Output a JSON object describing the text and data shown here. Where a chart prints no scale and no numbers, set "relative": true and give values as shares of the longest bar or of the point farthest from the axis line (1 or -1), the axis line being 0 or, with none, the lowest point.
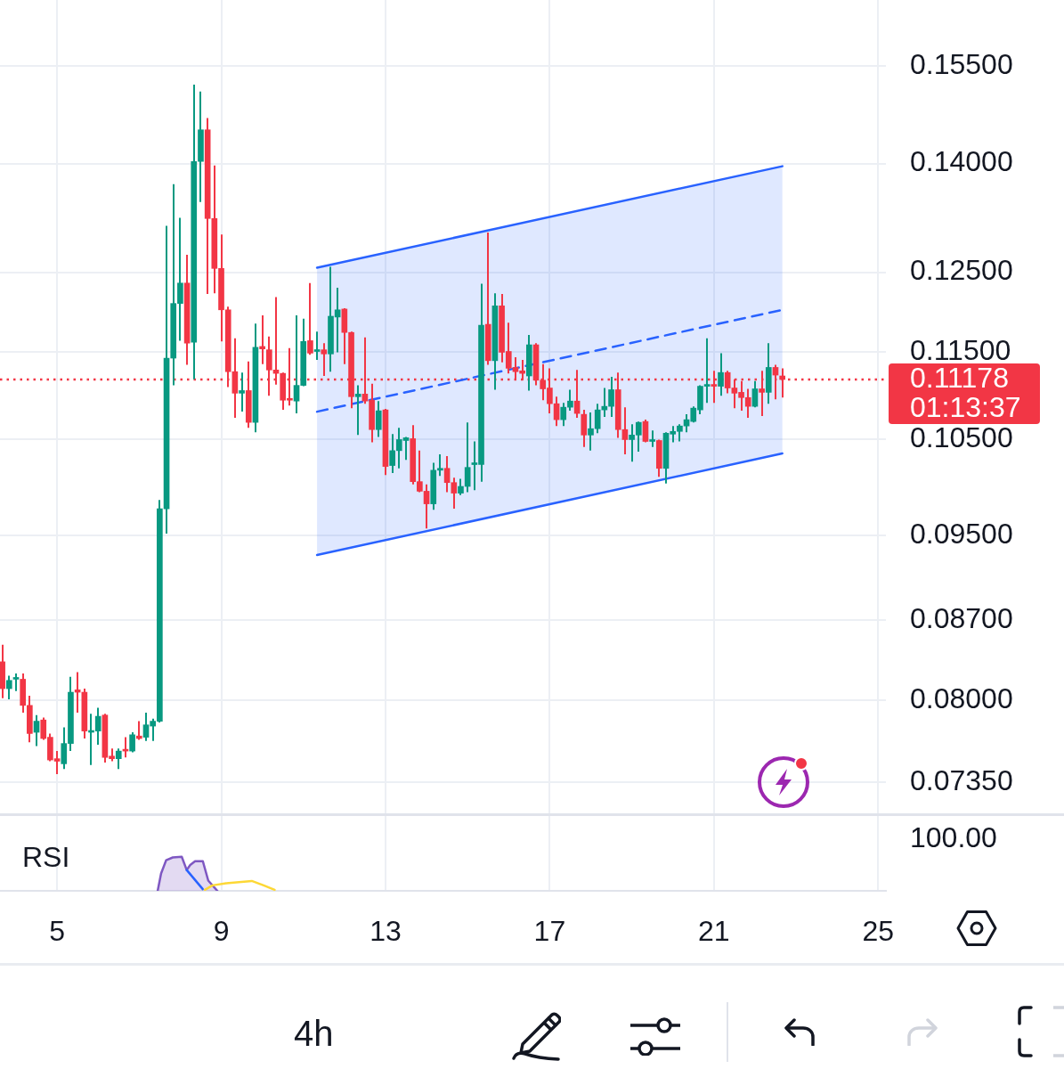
{
  "chart_data": [
    {
      "type": "candlestick",
      "subtitle": "4h",
      "log": true,
      "grid": true,
      "tick_labels": "y",
      "xlim": [
        3.61,
        25.19
      ],
      "xticks": [
        5,
        9,
        13,
        17,
        21,
        25
      ],
      "ylim": [
        0.071,
        0.166
      ],
      "yticks": [
        {
          "value": 0.0735,
          "label": "0.07350"
        },
        {
          "value": 0.08,
          "label": "0.08000"
        },
        {
          "value": 0.087,
          "label": "0.08700"
        },
        {
          "value": 0.095,
          "label": "0.09500"
        },
        {
          "value": 0.105,
          "label": "0.10500"
        },
        {
          "value": 0.115,
          "label": "0.11500"
        },
        {
          "value": 0.125,
          "label": "0.12500"
        },
        {
          "value": 0.14,
          "label": "0.14000"
        },
        {
          "value": 0.155,
          "label": "0.15500"
        }
      ],
      "x": [
        3.667,
        3.833,
        4,
        4.167,
        4.333,
        4.5,
        4.667,
        4.833,
        5,
        5.167,
        5.333,
        5.5,
        5.667,
        5.833,
        6,
        6.167,
        6.333,
        6.5,
        6.667,
        6.833,
        7,
        7.167,
        7.333,
        7.5,
        7.667,
        7.833,
        8,
        8.167,
        8.333,
        8.5,
        8.667,
        8.833,
        9,
        9.167,
        9.333,
        9.5,
        9.667,
        9.833,
        10,
        10.167,
        10.333,
        10.5,
        10.667,
        10.833,
        11,
        11.167,
        11.333,
        11.5,
        11.667,
        11.833,
        12,
        12.167,
        12.333,
        12.5,
        12.667,
        12.833,
        13,
        13.167,
        13.333,
        13.5,
        13.667,
        13.833,
        14,
        14.167,
        14.333,
        14.5,
        14.667,
        14.833,
        15,
        15.167,
        15.333,
        15.5,
        15.667,
        15.833,
        16,
        16.167,
        16.333,
        16.5,
        16.667,
        16.833,
        17,
        17.167,
        17.333,
        17.5,
        17.667,
        17.833,
        18,
        18.167,
        18.333,
        18.5,
        18.667,
        18.833,
        19,
        19.167,
        19.333,
        19.5,
        19.667,
        19.833,
        20,
        20.167,
        20.333,
        20.5,
        20.667,
        20.833,
        21,
        21.167,
        21.333,
        21.5,
        21.667,
        21.833,
        22,
        22.167,
        22.333,
        22.5,
        22.667
      ],
      "ohlc": [
        [
          0.0833,
          0.0848,
          0.0802,
          0.081
        ],
        [
          0.081,
          0.0821,
          0.0801,
          0.0817
        ],
        [
          0.0818,
          0.0823,
          0.0808,
          0.0819
        ],
        [
          0.0818,
          0.0823,
          0.079,
          0.0796
        ],
        [
          0.0796,
          0.0804,
          0.0766,
          0.0773
        ],
        [
          0.0774,
          0.0788,
          0.0763,
          0.0783
        ],
        [
          0.0784,
          0.0786,
          0.0768,
          0.0769
        ],
        [
          0.077,
          0.0773,
          0.0751,
          0.0752
        ],
        [
          0.0753,
          0.0759,
          0.0741,
          0.0751
        ],
        [
          0.0749,
          0.0778,
          0.0745,
          0.0765
        ],
        [
          0.0765,
          0.082,
          0.0759,
          0.0807
        ],
        [
          0.0809,
          0.0824,
          0.079,
          0.0807
        ],
        [
          0.0807,
          0.081,
          0.0769,
          0.0775
        ],
        [
          0.0774,
          0.0789,
          0.0748,
          0.0775
        ],
        [
          0.0775,
          0.0794,
          0.0764,
          0.0787
        ],
        [
          0.0788,
          0.0789,
          0.075,
          0.0754
        ],
        [
          0.0755,
          0.0761,
          0.0751,
          0.0753
        ],
        [
          0.0753,
          0.0761,
          0.0745,
          0.0759
        ],
        [
          0.076,
          0.077,
          0.0754,
          0.0759
        ],
        [
          0.0759,
          0.0774,
          0.0758,
          0.0772
        ],
        [
          0.0771,
          0.0783,
          0.0768,
          0.0769
        ],
        [
          0.077,
          0.079,
          0.0767,
          0.078
        ],
        [
          0.0779,
          0.0785,
          0.0767,
          0.0783
        ],
        [
          0.0783,
          0.0986,
          0.0782,
          0.0977
        ],
        [
          0.0977,
          0.1312,
          0.0952,
          0.1143
        ],
        [
          0.1143,
          0.137,
          0.1111,
          0.121
        ],
        [
          0.121,
          0.1323,
          0.1164,
          0.1236
        ],
        [
          0.1236,
          0.1273,
          0.1135,
          0.1161
        ],
        [
          0.1162,
          0.152,
          0.1118,
          0.1403
        ],
        [
          0.1403,
          0.1509,
          0.1345,
          0.145
        ],
        [
          0.145,
          0.1468,
          0.1222,
          0.1322
        ],
        [
          0.1322,
          0.1397,
          0.1223,
          0.1255
        ],
        [
          0.1255,
          0.13,
          0.1163,
          0.1202
        ],
        [
          0.1202,
          0.1206,
          0.1109,
          0.1127
        ],
        [
          0.1127,
          0.1167,
          0.1074,
          0.1102
        ],
        [
          0.1102,
          0.1126,
          0.1081,
          0.1105
        ],
        [
          0.1105,
          0.1139,
          0.1063,
          0.1069
        ],
        [
          0.1069,
          0.1185,
          0.1058,
          0.1156
        ],
        [
          0.1157,
          0.1195,
          0.1136,
          0.1154
        ],
        [
          0.1153,
          0.1169,
          0.1099,
          0.1129
        ],
        [
          0.1129,
          0.1218,
          0.1112,
          0.1125
        ],
        [
          0.1125,
          0.1126,
          0.1083,
          0.1094
        ],
        [
          0.1096,
          0.1155,
          0.1088,
          0.1094
        ],
        [
          0.1093,
          0.1195,
          0.1079,
          0.1111
        ],
        [
          0.1111,
          0.1191,
          0.111,
          0.1163
        ],
        [
          0.1164,
          0.1236,
          0.1147,
          0.1149
        ],
        [
          0.1151,
          0.1175,
          0.1141,
          0.1153
        ],
        [
          0.1153,
          0.1161,
          0.1122,
          0.1148
        ],
        [
          0.1148,
          0.1257,
          0.1127,
          0.1194
        ],
        [
          0.1193,
          0.123,
          0.115,
          0.1202
        ],
        [
          0.1203,
          0.1204,
          0.1136,
          0.1174
        ],
        [
          0.1174,
          0.1175,
          0.1085,
          0.1098
        ],
        [
          0.1098,
          0.1111,
          0.1055,
          0.1101
        ],
        [
          0.1101,
          0.1168,
          0.109,
          0.1093
        ],
        [
          0.1094,
          0.1113,
          0.1047,
          0.1061
        ],
        [
          0.1061,
          0.1093,
          0.1053,
          0.1082
        ],
        [
          0.1083,
          0.1084,
          0.1012,
          0.1021
        ],
        [
          0.1022,
          0.1056,
          0.1014,
          0.1038
        ],
        [
          0.1038,
          0.1063,
          0.1019,
          0.105
        ],
        [
          0.1049,
          0.1053,
          0.1028,
          0.1052
        ],
        [
          0.1051,
          0.1066,
          0.1002,
          0.1005
        ],
        [
          0.1005,
          0.1038,
          0.0994,
          0.0995
        ],
        [
          0.0995,
          0.1002,
          0.0957,
          0.0982
        ],
        [
          0.0982,
          0.1025,
          0.0976,
          0.1017
        ],
        [
          0.1017,
          0.1034,
          0.1011,
          0.1019
        ],
        [
          0.1019,
          0.1032,
          0.0994,
          0.1004
        ],
        [
          0.1004,
          0.1009,
          0.0977,
          0.0993
        ],
        [
          0.0993,
          0.1008,
          0.0991,
          0.1
        ],
        [
          0.1,
          0.1069,
          0.0994,
          0.102
        ],
        [
          0.1023,
          0.1048,
          0.0996,
          0.1024
        ],
        [
          0.1023,
          0.1235,
          0.1005,
          0.1183
        ],
        [
          0.1184,
          0.1303,
          0.1135,
          0.114
        ],
        [
          0.114,
          0.1223,
          0.1106,
          0.1207
        ],
        [
          0.1207,
          0.1222,
          0.1138,
          0.115
        ],
        [
          0.1151,
          0.1186,
          0.1125,
          0.1131
        ],
        [
          0.1132,
          0.1144,
          0.1117,
          0.1127
        ],
        [
          0.1128,
          0.1141,
          0.1117,
          0.1125
        ],
        [
          0.1122,
          0.1171,
          0.1105,
          0.1159
        ],
        [
          0.1159,
          0.1161,
          0.1111,
          0.1117
        ],
        [
          0.1117,
          0.1136,
          0.1094,
          0.1107
        ],
        [
          0.1108,
          0.1131,
          0.1079,
          0.109
        ],
        [
          0.109,
          0.1098,
          0.1065,
          0.1072
        ],
        [
          0.1072,
          0.1091,
          0.1065,
          0.1086
        ],
        [
          0.1086,
          0.1106,
          0.1082,
          0.1093
        ],
        [
          0.1093,
          0.1129,
          0.1074,
          0.1079
        ],
        [
          0.1078,
          0.1083,
          0.1042,
          0.1055
        ],
        [
          0.1055,
          0.108,
          0.1038,
          0.1062
        ],
        [
          0.1062,
          0.109,
          0.1057,
          0.1083
        ],
        [
          0.1083,
          0.1108,
          0.1075,
          0.1087
        ],
        [
          0.1087,
          0.1121,
          0.1075,
          0.1106
        ],
        [
          0.1106,
          0.1126,
          0.1052,
          0.1061
        ],
        [
          0.1061,
          0.1086,
          0.1034,
          0.105
        ],
        [
          0.105,
          0.1067,
          0.1026,
          0.1055
        ],
        [
          0.1055,
          0.107,
          0.1037,
          0.1069
        ],
        [
          0.107,
          0.1072,
          0.1047,
          0.1048
        ],
        [
          0.1048,
          0.106,
          0.1042,
          0.1049
        ],
        [
          0.1049,
          0.105,
          0.101,
          0.1019
        ],
        [
          0.1019,
          0.1058,
          0.1003,
          0.1057
        ],
        [
          0.1056,
          0.1065,
          0.1047,
          0.1059
        ],
        [
          0.1059,
          0.1067,
          0.1048,
          0.1065
        ],
        [
          0.1065,
          0.1078,
          0.1058,
          0.1072
        ],
        [
          0.107,
          0.1087,
          0.1069,
          0.1085
        ],
        [
          0.1083,
          0.1111,
          0.1078,
          0.111
        ],
        [
          0.111,
          0.1167,
          0.1091,
          0.1112
        ],
        [
          0.1112,
          0.1128,
          0.1091,
          0.111
        ],
        [
          0.111,
          0.1149,
          0.1099,
          0.1126
        ],
        [
          0.1126,
          0.1128,
          0.1102,
          0.1108
        ],
        [
          0.1108,
          0.1118,
          0.1085,
          0.1102
        ],
        [
          0.1103,
          0.1116,
          0.1082,
          0.1097
        ],
        [
          0.1097,
          0.1107,
          0.1074,
          0.1087
        ],
        [
          0.1087,
          0.1116,
          0.1086,
          0.1107
        ],
        [
          0.1107,
          0.1128,
          0.1076,
          0.1103
        ],
        [
          0.1103,
          0.1161,
          0.109,
          0.1132
        ],
        [
          0.1132,
          0.1135,
          0.1095,
          0.1123
        ],
        [
          0.1122,
          0.1131,
          0.1097,
          0.11178
        ]
      ],
      "colors": [
        "#f23645",
        "#089981",
        "#089981",
        "#f23645",
        "#f23645",
        "#089981",
        "#f23645",
        "#f23645",
        "#f23645",
        "#089981",
        "#089981",
        "#f23645",
        "#f23645",
        "#089981",
        "#089981",
        "#f23645",
        "#f23645",
        "#089981",
        "#f23645",
        "#089981",
        "#f23645",
        "#089981",
        "#089981",
        "#089981",
        "#089981",
        "#089981",
        "#089981",
        "#f23645",
        "#089981",
        "#089981",
        "#f23645",
        "#f23645",
        "#f23645",
        "#f23645",
        "#f23645",
        "#089981",
        "#f23645",
        "#089981",
        "#f23645",
        "#f23645",
        "#f23645",
        "#f23645",
        "#f23645",
        "#089981",
        "#089981",
        "#f23645",
        "#089981",
        "#f23645",
        "#089981",
        "#089981",
        "#f23645",
        "#f23645",
        "#089981",
        "#f23645",
        "#f23645",
        "#089981",
        "#f23645",
        "#089981",
        "#089981",
        "#089981",
        "#f23645",
        "#f23645",
        "#f23645",
        "#089981",
        "#089981",
        "#f23645",
        "#f23645",
        "#089981",
        "#089981",
        "#089981",
        "#089981",
        "#f23645",
        "#089981",
        "#f23645",
        "#f23645",
        "#f23645",
        "#f23645",
        "#089981",
        "#f23645",
        "#f23645",
        "#f23645",
        "#f23645",
        "#089981",
        "#089981",
        "#f23645",
        "#f23645",
        "#089981",
        "#089981",
        "#089981",
        "#089981",
        "#f23645",
        "#f23645",
        "#089981",
        "#089981",
        "#f23645",
        "#089981",
        "#f23645",
        "#089981",
        "#089981",
        "#089981",
        "#089981",
        "#089981",
        "#089981",
        "#089981",
        "#f23645",
        "#089981",
        "#f23645",
        "#f23645",
        "#f23645",
        "#f23645",
        "#089981",
        "#f23645",
        "#089981",
        "#f23645",
        "#f23645"
      ],
      "series": [
        {
          "type": "line",
          "color": "#2962ff",
          "x": [
            11.333,
            22.667
          ],
          "values": [
            0.1256,
            0.1396
          ]
        },
        {
          "type": "line",
          "color": "#2962ff",
          "x": [
            11.333,
            22.667
          ],
          "values": [
            0.0931,
            0.1035
          ]
        },
        {
          "type": "line",
          "color": "#2962ff",
          "line_style": "dashed",
          "x": [
            11.333,
            22.667
          ],
          "values": [
            0.1081,
            0.1202
          ],
          "lower": [
            0.0931,
            0.1035
          ],
          "upper": [
            0.1256,
            0.1396
          ]
        }
      ],
      "ref_lines": [
        {
          "axis": "y",
          "value": 0.11178,
          "label": "0.11178\n01:13:37",
          "color": "#f23645",
          "line_style": "dotted"
        }
      ]
    },
    {
      "type": "line",
      "title": "RSI",
      "relative": true,
      "grid": "x",
      "tick_labels": "x",
      "xlim": [
        3.61,
        25.19
      ],
      "xticks": [
        5,
        9,
        13,
        17,
        21,
        25
      ],
      "annotations": [
        "100.00"
      ],
      "series": [
        {
          "type": "area",
          "color": "#7e57c2",
          "x": [
            7.451,
            7.534,
            7.657,
            7.82,
            8.037,
            8.158,
            8.243,
            8.362,
            8.551,
            8.683,
            8.905
          ],
          "values": [
            0,
            0.51,
            0.9,
            0.98,
            1,
            0.61,
            0.76,
            0.87,
            0.87,
            0.3,
            0
          ]
        },
        {
          "type": "line",
          "color": "#2962ff",
          "x": [
            8.158,
            8.55
          ],
          "values": [
            0.61,
            0.05
          ]
        },
        {
          "type": "line",
          "color": "#fdd835",
          "x": [
            8.601,
            8.785,
            9.117,
            9.743,
            10.033,
            10.3
          ],
          "values": [
            0.03,
            0.16,
            0.22,
            0.29,
            0.16,
            0.03
          ]
        }
      ]
    }
  ]
}
